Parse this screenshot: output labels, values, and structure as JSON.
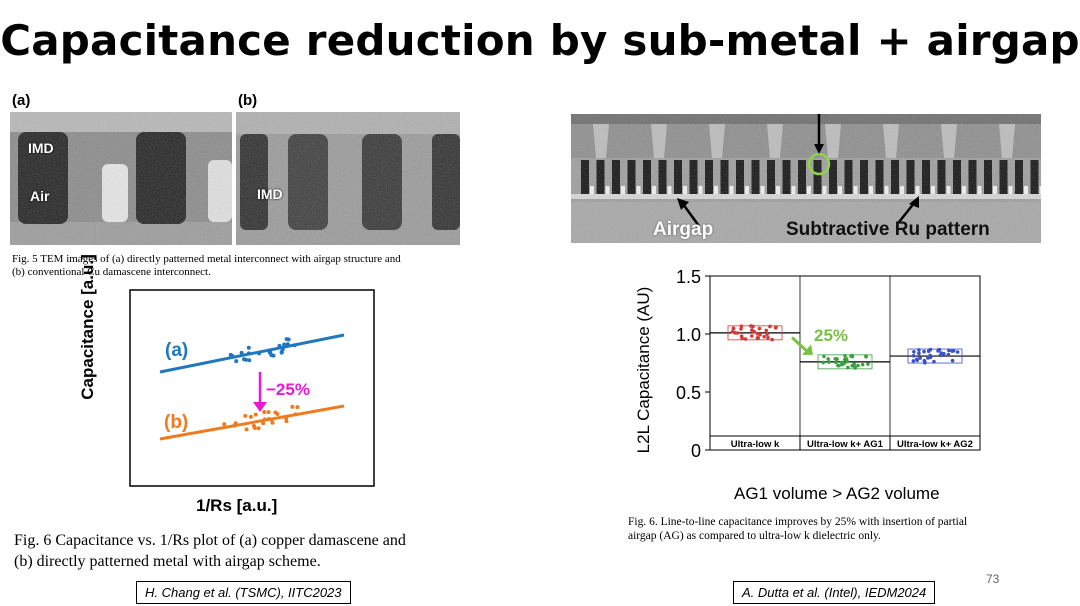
{
  "title": "Capacitance reduction by sub-metal + airgap",
  "left": {
    "tem": {
      "label_a": "(a)",
      "label_b": "(b)",
      "imd_a": "IMD",
      "air": "Air",
      "imd_b": "IMD"
    },
    "fig5_caption_line1": "Fig. 5 TEM images of (a) directly patterned metal interconnect with airgap structure and",
    "fig5_caption_line2": "(b) conventional Cu damascene interconnect.",
    "plot": {
      "ylabel": "Capacitance [a.u.]",
      "xlabel": "1/Rs [a.u.]",
      "series_a_label": "(a)",
      "series_b_label": "(b)",
      "annotation": "−25%",
      "colors": {
        "a": "#1f77c0",
        "b": "#f07a1e",
        "arrow": "#e81ad8"
      }
    },
    "fig6_caption_line1": "Fig. 6 Capacitance vs. 1/Rs plot of (a) copper damascene and",
    "fig6_caption_line2": "(b) directly patterned metal with airgap scheme.",
    "citation": "H. Chang et al. (TSMC), IITC2023"
  },
  "right": {
    "tem": {
      "airgap_label": "Airgap",
      "ru_label": "Subtractive Ru pattern"
    },
    "chart_data": {
      "type": "scatter",
      "ylabel": "L2L Capacitance (AU)",
      "xlabel": "AG1 volume > AG2 volume",
      "categories": [
        "Ultra-low k",
        "Ultra-low k+ AG1",
        "Ultra-low k+ AG2"
      ],
      "yticks": [
        "1.5",
        "1.0",
        "0.5",
        "0"
      ],
      "ylim": [
        0,
        1.5
      ],
      "medians": [
        1.01,
        0.76,
        0.81
      ],
      "annotation": "25%",
      "colors": {
        "ulk": "#d33a3a",
        "ag1": "#3aa040",
        "ag2": "#3a50c8",
        "annotation": "#7ac143"
      }
    },
    "fig6_caption_line1": "Fig. 6. Line-to-line capacitance improves by 25% with insertion of partial",
    "fig6_caption_line2": "airgap (AG) as compared to ultra-low k dielectric only.",
    "citation": "A. Dutta et al. (Intel), IEDM2024"
  },
  "slide_number": "73"
}
